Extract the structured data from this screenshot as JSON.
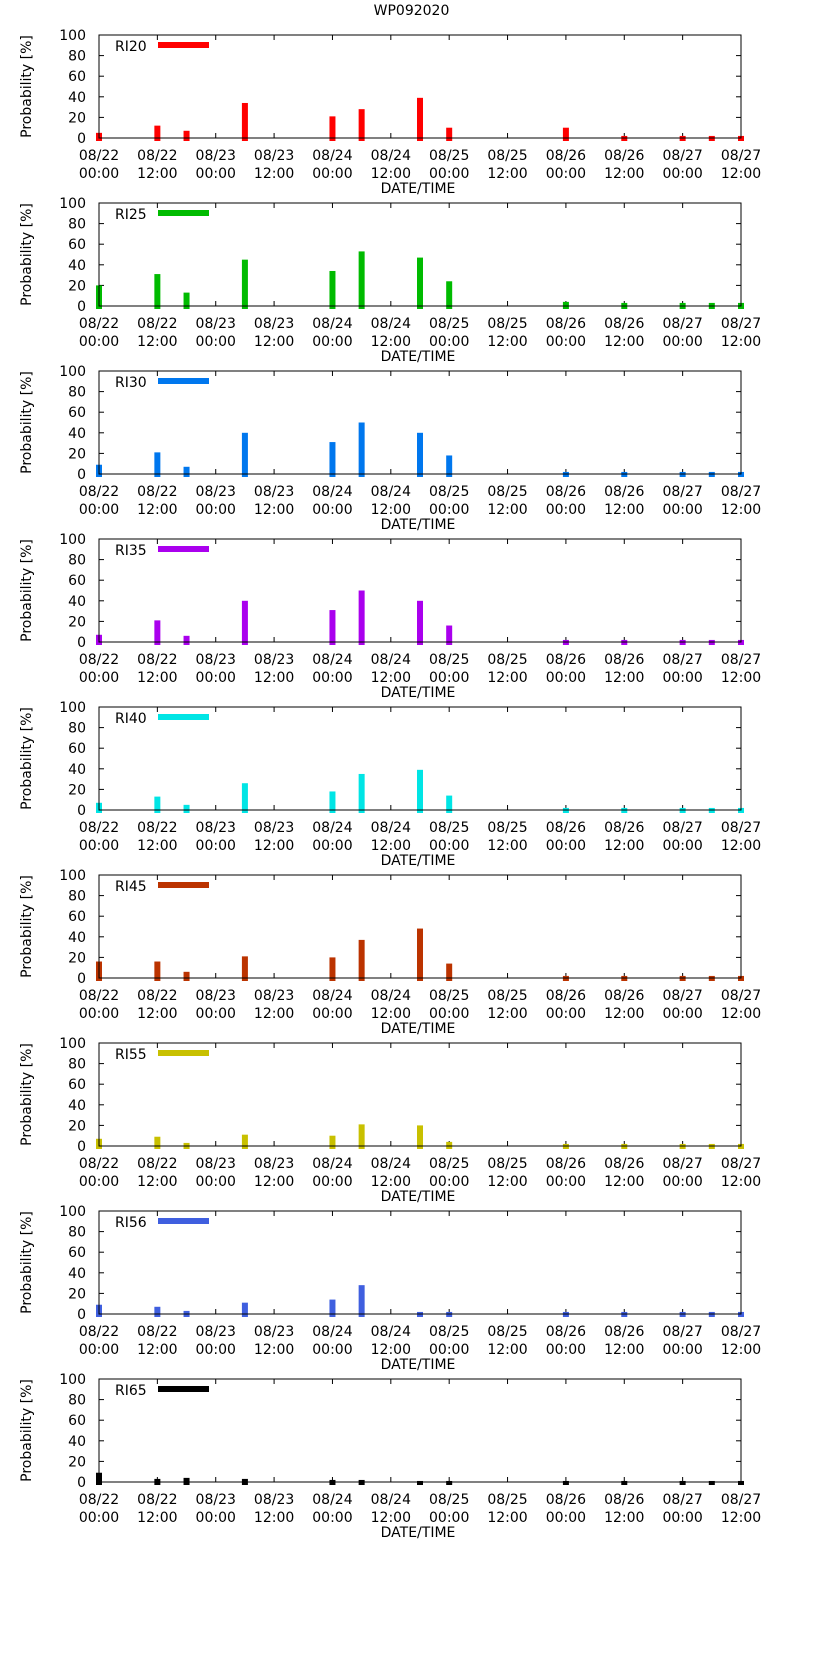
{
  "title": "WP092020",
  "chart_data": {
    "type": "bar",
    "title": "WP092020",
    "xlabel": "DATE/TIME",
    "ylabel": "Probability [%]",
    "ylim": [
      0,
      100
    ],
    "yticks": [
      "0",
      "20",
      "40",
      "60",
      "80",
      "100"
    ],
    "xticks": [
      {
        "date": "08/22",
        "time": "00:00"
      },
      {
        "date": "08/22",
        "time": "12:00"
      },
      {
        "date": "08/23",
        "time": "00:00"
      },
      {
        "date": "08/23",
        "time": "12:00"
      },
      {
        "date": "08/24",
        "time": "00:00"
      },
      {
        "date": "08/24",
        "time": "12:00"
      },
      {
        "date": "08/25",
        "time": "00:00"
      },
      {
        "date": "08/25",
        "time": "12:00"
      },
      {
        "date": "08/26",
        "time": "00:00"
      },
      {
        "date": "08/26",
        "time": "12:00"
      },
      {
        "date": "08/27",
        "time": "00:00"
      },
      {
        "date": "08/27",
        "time": "12:00"
      }
    ],
    "x_hours": [
      0,
      12,
      18,
      30,
      48,
      54,
      66,
      72,
      96,
      108,
      120,
      126,
      132
    ],
    "x_hours_note": "hours after 08/22 00:00; x-axis range 0 to 132",
    "xlim": [
      0,
      132
    ],
    "series": [
      {
        "name": "RI20",
        "color": "#ff0000",
        "values": [
          5,
          12,
          7,
          34,
          21,
          28,
          39,
          10,
          10,
          2,
          2,
          2,
          2
        ]
      },
      {
        "name": "RI25",
        "color": "#00bb00",
        "values": [
          20,
          31,
          13,
          45,
          34,
          53,
          47,
          24,
          4,
          3,
          3,
          3,
          3
        ]
      },
      {
        "name": "RI30",
        "color": "#0077ee",
        "values": [
          9,
          21,
          7,
          40,
          31,
          50,
          40,
          18,
          2,
          2,
          2,
          2,
          2
        ]
      },
      {
        "name": "RI35",
        "color": "#aa00ee",
        "values": [
          7,
          21,
          6,
          40,
          31,
          50,
          40,
          16,
          2,
          2,
          2,
          2,
          2
        ]
      },
      {
        "name": "RI40",
        "color": "#00e5e5",
        "values": [
          7,
          13,
          5,
          26,
          18,
          35,
          39,
          14,
          2,
          2,
          2,
          2,
          2
        ]
      },
      {
        "name": "RI45",
        "color": "#bb3300",
        "values": [
          16,
          16,
          6,
          21,
          20,
          37,
          48,
          14,
          2,
          2,
          2,
          2,
          2
        ]
      },
      {
        "name": "RI55",
        "color": "#c8c000",
        "values": [
          7,
          9,
          3,
          11,
          10,
          21,
          20,
          4,
          2,
          2,
          2,
          2,
          2
        ]
      },
      {
        "name": "RI56",
        "color": "#3f5fdf",
        "values": [
          9,
          7,
          3,
          11,
          14,
          28,
          2,
          2,
          2,
          2,
          2,
          2,
          2
        ]
      },
      {
        "name": "RI65",
        "color": "#000000",
        "values": [
          9,
          3,
          4,
          3,
          2,
          2,
          1,
          1,
          1,
          1,
          1,
          1,
          1
        ]
      }
    ]
  }
}
